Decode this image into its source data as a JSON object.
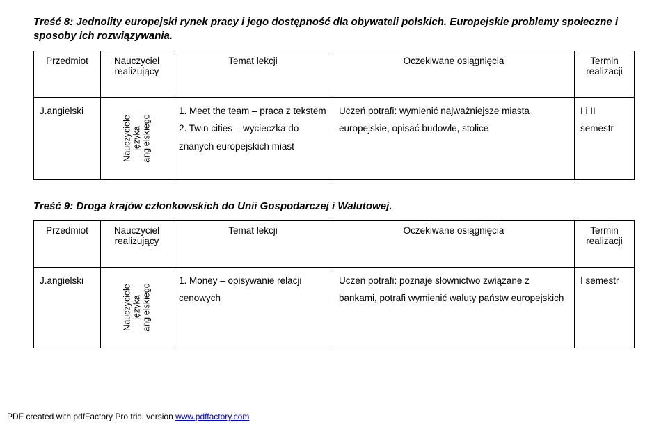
{
  "section8": {
    "heading": "Treść 8: Jednolity europejski rynek pracy i jego dostępność dla obywateli polskich. Europejskie problemy społeczne i sposoby ich rozwiązywania.",
    "headers": {
      "przedmiot": "Przedmiot",
      "nauczyciel": "Nauczyciel realizujący",
      "temat": "Temat lekcji",
      "oczekiwane": "Oczekiwane osiągnięcia",
      "termin": "Termin realizacji"
    },
    "row": {
      "przedmiot": "J.angielski",
      "nauczyciel_vertical": "Nauczyciele języka angielskiego",
      "temat": "1. Meet the team – praca z tekstem\n2. Twin cities – wycieczka do znanych europejskich miast",
      "oczekiwane": "Uczeń potrafi: wymienić najważniejsze miasta europejskie, opisać budowle, stolice",
      "termin": "I i II semestr"
    }
  },
  "section9": {
    "heading": "Treść 9: Droga krajów członkowskich do Unii Gospodarczej i Walutowej.",
    "headers": {
      "przedmiot": "Przedmiot",
      "nauczyciel": "Nauczyciel realizujący",
      "temat": "Temat lekcji",
      "oczekiwane": "Oczekiwane osiągnięcia",
      "termin": "Termin realizacji"
    },
    "row": {
      "przedmiot": "J.angielski",
      "nauczyciel_vertical": "Nauczyciele języka angielskiego",
      "temat": "1. Money – opisywanie relacji cenowych",
      "oczekiwane": "Uczeń potrafi: poznaje słownictwo związane z bankami, potrafi wymienić waluty państw europejskich",
      "termin": "I semestr"
    }
  },
  "footer": {
    "prefix": "PDF created with pdfFactory Pro trial version ",
    "link": "www.pdffactory.com"
  },
  "style": {
    "row2_height_s8": 118,
    "row2_height_s9": 116
  }
}
